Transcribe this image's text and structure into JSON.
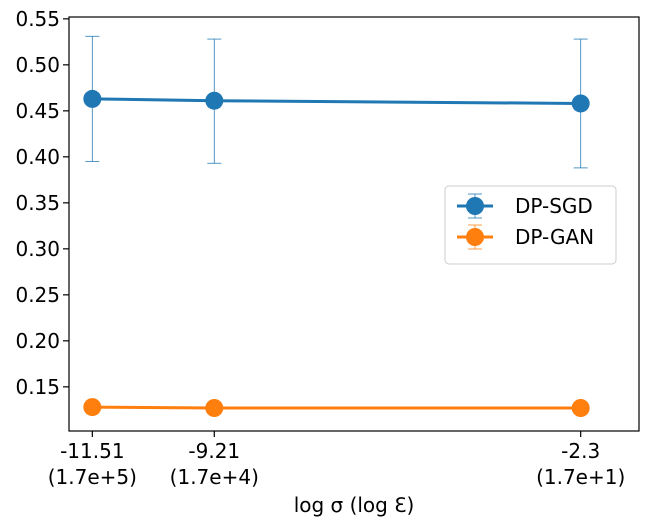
{
  "chart_data": {
    "type": "line",
    "title": "",
    "xlabel": "log σ (log ℇ)",
    "ylabel": "",
    "x": [
      -11.51,
      -9.21,
      -2.3
    ],
    "x_tick_labels": [
      {
        "value": "-11.51",
        "sub": "(1.7e+5)"
      },
      {
        "value": "-9.21",
        "sub": "(1.7e+4)"
      },
      {
        "value": "-2.3",
        "sub": "(1.7e+1)"
      }
    ],
    "xlim": [
      -11.95,
      -1.2
    ],
    "ylim": [
      0.102,
      0.552
    ],
    "yticks": [
      0.15,
      0.2,
      0.25,
      0.3,
      0.35,
      0.4,
      0.45,
      0.5,
      0.55
    ],
    "ytick_labels": [
      "0.15",
      "0.20",
      "0.25",
      "0.30",
      "0.35",
      "0.40",
      "0.45",
      "0.50",
      "0.55"
    ],
    "grid": false,
    "legend_position": "center-right",
    "series": [
      {
        "name": "DP-SGD",
        "color": "#1f77b4",
        "values": [
          0.463,
          0.461,
          0.458
        ],
        "err_low": [
          0.395,
          0.393,
          0.388
        ],
        "err_high": [
          0.531,
          0.528,
          0.528
        ]
      },
      {
        "name": "DP-GAN",
        "color": "#ff7f0e",
        "values": [
          0.128,
          0.127,
          0.127
        ],
        "err_low": [
          0.126,
          0.125,
          0.125
        ],
        "err_high": [
          0.13,
          0.129,
          0.129
        ]
      }
    ]
  }
}
